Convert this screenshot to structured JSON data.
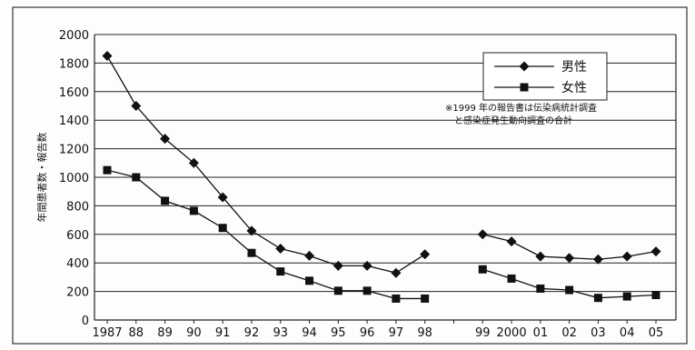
{
  "chart_data": {
    "type": "line",
    "title": "",
    "xlabel": "",
    "ylabel": "年間患者数・報告数",
    "ylim": [
      0,
      2000
    ],
    "yticks": [
      0,
      200,
      400,
      600,
      800,
      1000,
      1200,
      1400,
      1600,
      1800,
      2000
    ],
    "grid": true,
    "legend_position": "top-right",
    "categories": [
      "1987",
      "88",
      "89",
      "90",
      "91",
      "92",
      "93",
      "94",
      "95",
      "96",
      "97",
      "98",
      "",
      "99",
      "2000",
      "01",
      "02",
      "03",
      "04",
      "05"
    ],
    "series": [
      {
        "name": "男性",
        "marker": "diamond",
        "values": [
          1850,
          1500,
          1270,
          1100,
          860,
          625,
          500,
          450,
          380,
          380,
          330,
          460,
          null,
          600,
          550,
          445,
          435,
          425,
          445,
          480
        ]
      },
      {
        "name": "女性",
        "marker": "square",
        "values": [
          1050,
          1000,
          835,
          765,
          645,
          470,
          340,
          275,
          205,
          205,
          150,
          150,
          null,
          355,
          290,
          220,
          210,
          155,
          165,
          175
        ]
      }
    ],
    "annotation": [
      "※1999 年の報告書は伝染病統計調査",
      "と感染症発生動向調査の合計"
    ]
  }
}
